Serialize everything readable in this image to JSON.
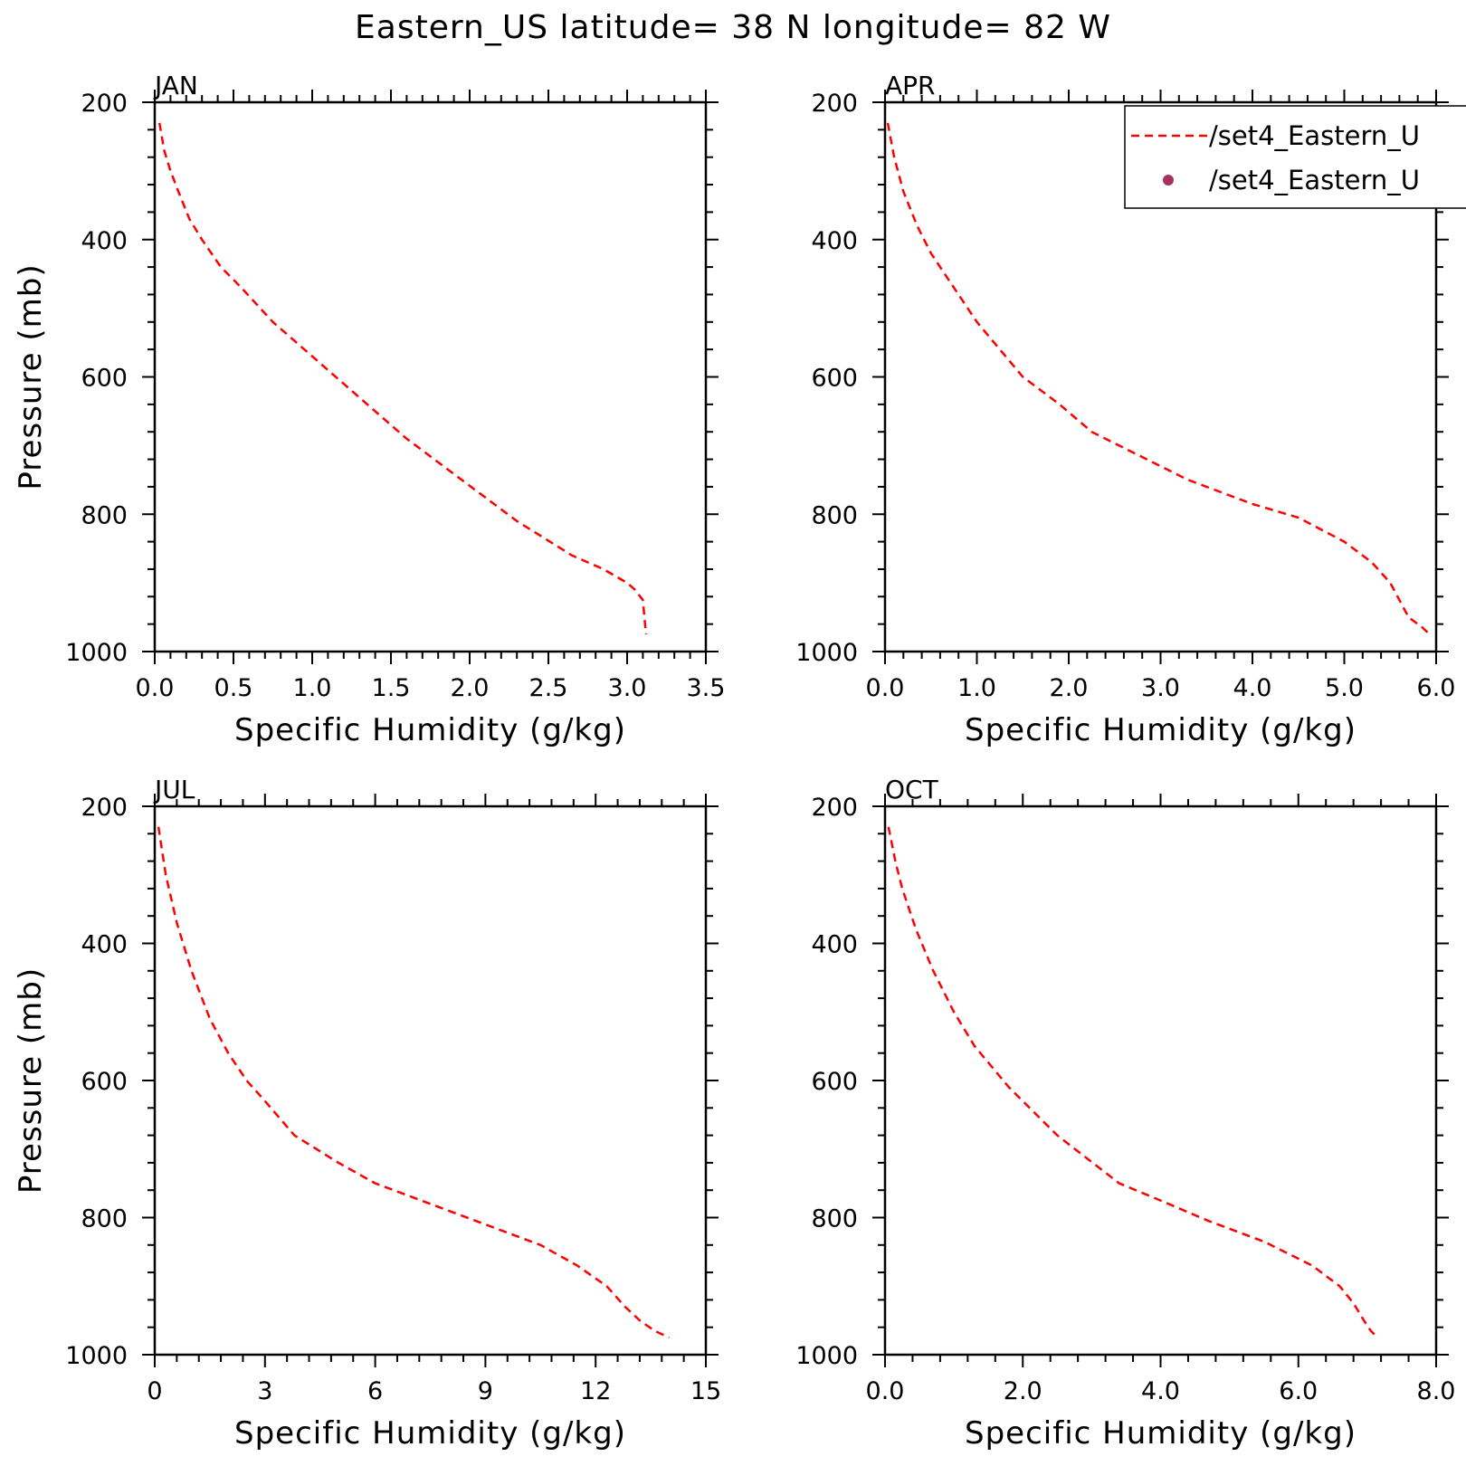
{
  "title": "Eastern_US  latitude= 38 N longitude= 82 W",
  "legend": {
    "entries": [
      {
        "label": "/set4_Eastern_U",
        "style": "dashed-line",
        "color": "#ff0000"
      },
      {
        "label": "/set4_Eastern_U",
        "style": "dot",
        "color": "#a8325e"
      }
    ],
    "placement": "top-right of APR panel, clipped at right edge"
  },
  "chart_data": [
    {
      "type": "line",
      "title": "JAN",
      "xlabel": "Specific Humidity (g/kg)",
      "ylabel": "Pressure (mb)",
      "xlim": [
        0,
        3.5
      ],
      "ylim": [
        1000,
        200
      ],
      "y_inverted": true,
      "xticks": [
        "0.0",
        "0.5",
        "1.0",
        "1.5",
        "2.0",
        "2.5",
        "3.0",
        "3.5"
      ],
      "xtick_values": [
        0,
        0.5,
        1.0,
        1.5,
        2.0,
        2.5,
        3.0,
        3.5
      ],
      "yticks": [
        "200",
        "400",
        "600",
        "800",
        "1000"
      ],
      "ytick_values": [
        200,
        400,
        600,
        800,
        1000
      ],
      "grid": false,
      "series": [
        {
          "style": "dashed",
          "color": "#ff0000",
          "x": [
            0.03,
            0.06,
            0.1,
            0.15,
            0.22,
            0.3,
            0.42,
            0.55,
            0.75,
            1.0,
            1.3,
            1.6,
            1.95,
            2.3,
            2.65,
            2.85,
            3.0,
            3.05,
            3.1,
            3.11,
            3.12
          ],
          "y": [
            230,
            270,
            300,
            330,
            370,
            400,
            440,
            470,
            520,
            570,
            630,
            690,
            750,
            810,
            860,
            880,
            900,
            910,
            925,
            950,
            975
          ]
        }
      ]
    },
    {
      "type": "line",
      "title": "APR",
      "xlabel": "Specific Humidity (g/kg)",
      "ylabel": "",
      "xlim": [
        0,
        6.0
      ],
      "ylim": [
        1000,
        200
      ],
      "y_inverted": true,
      "xticks": [
        "0.0",
        "1.0",
        "2.0",
        "3.0",
        "4.0",
        "5.0",
        "6.0"
      ],
      "xtick_values": [
        0,
        1,
        2,
        3,
        4,
        5,
        6
      ],
      "yticks": [
        "200",
        "400",
        "600",
        "800",
        "1000"
      ],
      "ytick_values": [
        200,
        400,
        600,
        800,
        1000
      ],
      "grid": false,
      "series": [
        {
          "style": "dashed",
          "color": "#ff0000",
          "x": [
            0.03,
            0.1,
            0.2,
            0.35,
            0.5,
            0.75,
            1.0,
            1.5,
            1.9,
            2.25,
            2.7,
            3.3,
            4.0,
            4.5,
            5.0,
            5.3,
            5.5,
            5.6,
            5.7,
            5.85,
            5.93
          ],
          "y": [
            230,
            280,
            330,
            380,
            420,
            470,
            520,
            600,
            640,
            680,
            710,
            750,
            785,
            805,
            840,
            870,
            900,
            925,
            950,
            965,
            975
          ]
        }
      ]
    },
    {
      "type": "line",
      "title": "JUL",
      "xlabel": "Specific Humidity (g/kg)",
      "ylabel": "Pressure (mb)",
      "xlim": [
        0,
        15
      ],
      "ylim": [
        1000,
        200
      ],
      "y_inverted": true,
      "xticks": [
        "0",
        "3",
        "6",
        "9",
        "12",
        "15"
      ],
      "xtick_values": [
        0,
        3,
        6,
        9,
        12,
        15
      ],
      "yticks": [
        "200",
        "400",
        "600",
        "800",
        "1000"
      ],
      "ytick_values": [
        200,
        400,
        600,
        800,
        1000
      ],
      "grid": false,
      "series": [
        {
          "style": "dashed",
          "color": "#ff0000",
          "x": [
            0.1,
            0.3,
            0.6,
            1.0,
            1.5,
            2.0,
            2.5,
            3.0,
            3.8,
            5.0,
            6.0,
            7.5,
            9.0,
            10.5,
            11.5,
            12.3,
            12.8,
            13.2,
            13.6,
            14.0
          ],
          "y": [
            230,
            300,
            370,
            440,
            510,
            560,
            600,
            630,
            680,
            720,
            750,
            780,
            810,
            840,
            870,
            900,
            930,
            950,
            965,
            975
          ]
        }
      ]
    },
    {
      "type": "line",
      "title": "OCT",
      "xlabel": "Specific Humidity (g/kg)",
      "ylabel": "",
      "xlim": [
        0,
        8.0
      ],
      "ylim": [
        1000,
        200
      ],
      "y_inverted": true,
      "xticks": [
        "0.0",
        "2.0",
        "4.0",
        "6.0",
        "8.0"
      ],
      "xtick_values": [
        0,
        2,
        4,
        6,
        8
      ],
      "yticks": [
        "200",
        "400",
        "600",
        "800",
        "1000"
      ],
      "ytick_values": [
        200,
        400,
        600,
        800,
        1000
      ],
      "grid": false,
      "series": [
        {
          "style": "dashed",
          "color": "#ff0000",
          "x": [
            0.05,
            0.15,
            0.25,
            0.45,
            0.7,
            1.0,
            1.3,
            1.8,
            2.5,
            3.4,
            4.0,
            4.7,
            5.5,
            6.2,
            6.6,
            6.8,
            6.95,
            7.05,
            7.15
          ],
          "y": [
            230,
            280,
            320,
            380,
            440,
            500,
            550,
            610,
            680,
            750,
            775,
            805,
            835,
            870,
            900,
            925,
            950,
            965,
            975
          ]
        }
      ]
    }
  ]
}
